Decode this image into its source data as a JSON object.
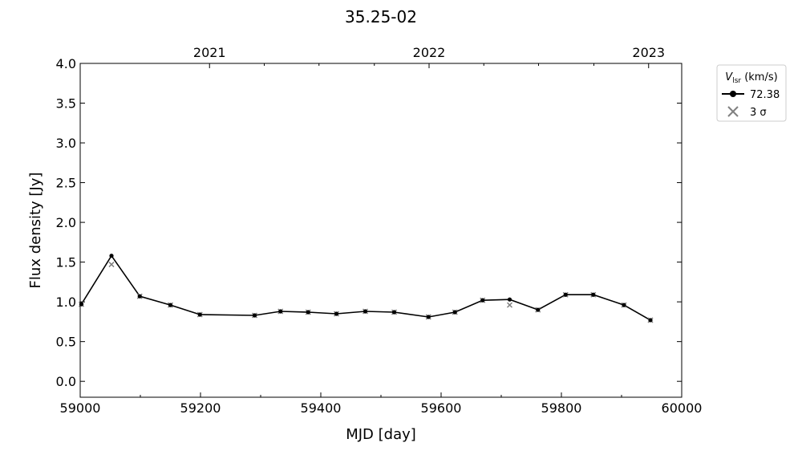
{
  "chart_data": {
    "type": "line",
    "title": "35.25-02",
    "xlabel": "MJD [day]",
    "ylabel": "Flux density [Jy]",
    "xlim": [
      59000,
      60000
    ],
    "ylim": [
      -0.2,
      4.0
    ],
    "x_ticks": [
      59000,
      59200,
      59400,
      59600,
      59800,
      60000
    ],
    "x_minor_ticks": [
      59100,
      59300,
      59500,
      59700,
      59900
    ],
    "y_ticks": [
      0.0,
      0.5,
      1.0,
      1.5,
      2.0,
      2.5,
      3.0,
      3.5,
      4.0
    ],
    "y_tick_labels": [
      "0.0",
      "0.5",
      "1.0",
      "1.5",
      "2.0",
      "2.5",
      "3.0",
      "3.5",
      "4.0"
    ],
    "top_axis": {
      "ticks": [
        {
          "mjd": 59215,
          "label": "2021"
        },
        {
          "mjd": 59580,
          "label": "2022"
        },
        {
          "mjd": 59945,
          "label": "2023"
        }
      ],
      "minor_ticks": [
        59306,
        59397,
        59489,
        59671,
        59762,
        59854
      ]
    },
    "legend": {
      "placement": "outside-top-right",
      "title_main": "V",
      "title_sub": "lsr",
      "title_rest": " (km/s)",
      "entries": [
        "72.38",
        "3 σ"
      ]
    },
    "series": [
      {
        "name": "72.38",
        "color": "#000000",
        "x": [
          59002,
          59052,
          59099,
          59150,
          59199,
          59290,
          59333,
          59379,
          59426,
          59474,
          59522,
          59579,
          59623,
          59669,
          59714,
          59761,
          59807,
          59853,
          59904,
          59948
        ],
        "y": [
          0.97,
          1.58,
          1.07,
          0.96,
          0.84,
          0.83,
          0.88,
          0.87,
          0.85,
          0.88,
          0.87,
          0.81,
          0.87,
          1.02,
          1.03,
          0.9,
          1.09,
          1.09,
          0.96,
          0.77
        ]
      },
      {
        "name": "3 σ",
        "color": "#808080",
        "x": [
          59002,
          59052,
          59099,
          59150,
          59199,
          59290,
          59333,
          59379,
          59426,
          59474,
          59522,
          59579,
          59623,
          59669,
          59714,
          59761,
          59807,
          59853,
          59904,
          59948
        ],
        "y": [
          0.97,
          1.47,
          1.07,
          0.96,
          0.84,
          0.83,
          0.88,
          0.87,
          0.85,
          0.88,
          0.87,
          0.81,
          0.87,
          1.02,
          0.96,
          0.9,
          1.09,
          1.09,
          0.96,
          0.77
        ]
      }
    ]
  }
}
